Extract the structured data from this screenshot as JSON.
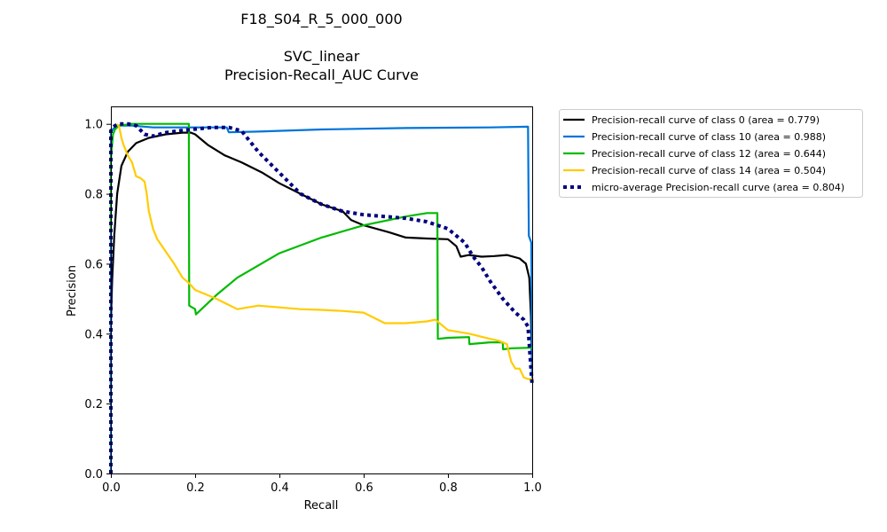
{
  "chart_data": {
    "type": "line",
    "title": [
      "F18_S04_R_5_000_000",
      "",
      "SVC_linear",
      "Precision-Recall_AUC Curve"
    ],
    "xlabel": "Recall",
    "ylabel": "Precision",
    "xlim": [
      0,
      1
    ],
    "ylim": [
      0,
      1.05
    ],
    "xticks": [
      "0.0",
      "0.2",
      "0.4",
      "0.6",
      "0.8",
      "1.0"
    ],
    "yticks": [
      "0.0",
      "0.2",
      "0.4",
      "0.6",
      "0.8",
      "1.0"
    ],
    "grid": false,
    "legend_position": "outside-top-right",
    "series": [
      {
        "name": "Precision-recall curve of class 0 (area = 0.779)",
        "color": "#000000",
        "style": "solid",
        "x": [
          0.0,
          0.0,
          0.003,
          0.008,
          0.015,
          0.025,
          0.04,
          0.06,
          0.09,
          0.13,
          0.17,
          0.19,
          0.2,
          0.21,
          0.23,
          0.27,
          0.31,
          0.36,
          0.4,
          0.45,
          0.5,
          0.55,
          0.57,
          0.6,
          0.66,
          0.7,
          0.75,
          0.8,
          0.82,
          0.83,
          0.85,
          0.88,
          0.91,
          0.94,
          0.97,
          0.985,
          0.993,
          0.997,
          1.0
        ],
        "y": [
          0.25,
          0.43,
          0.55,
          0.68,
          0.8,
          0.88,
          0.92,
          0.945,
          0.96,
          0.97,
          0.975,
          0.975,
          0.97,
          0.96,
          0.94,
          0.91,
          0.89,
          0.86,
          0.83,
          0.8,
          0.77,
          0.75,
          0.725,
          0.71,
          0.69,
          0.675,
          0.672,
          0.67,
          0.65,
          0.62,
          0.625,
          0.62,
          0.622,
          0.625,
          0.615,
          0.6,
          0.56,
          0.45,
          0.28
        ]
      },
      {
        "name": "Precision-recall curve of class 10 (area = 0.988)",
        "color": "#0074d9",
        "style": "solid",
        "x": [
          0.0,
          0.0,
          0.005,
          0.01,
          0.02,
          0.05,
          0.1,
          0.2,
          0.275,
          0.28,
          0.35,
          0.5,
          0.7,
          0.9,
          0.99,
          0.992,
          0.998,
          1.0
        ],
        "y": [
          0.0,
          0.98,
          0.985,
          0.99,
          0.995,
          0.995,
          0.99,
          0.99,
          0.99,
          0.976,
          0.978,
          0.984,
          0.988,
          0.99,
          0.992,
          0.68,
          0.66,
          0.27
        ]
      },
      {
        "name": "Precision-recall curve of class 12 (area = 0.644)",
        "color": "#00bb00",
        "style": "solid",
        "x": [
          0.0,
          0.0,
          0.005,
          0.01,
          0.02,
          0.05,
          0.1,
          0.15,
          0.185,
          0.186,
          0.2,
          0.202,
          0.25,
          0.3,
          0.4,
          0.5,
          0.6,
          0.7,
          0.75,
          0.775,
          0.776,
          0.8,
          0.85,
          0.851,
          0.9,
          0.93,
          0.931,
          0.95,
          1.0
        ],
        "y": [
          0.7,
          0.9,
          0.97,
          0.985,
          0.995,
          1.0,
          1.0,
          1.0,
          1.0,
          0.48,
          0.47,
          0.455,
          0.51,
          0.56,
          0.63,
          0.675,
          0.71,
          0.735,
          0.745,
          0.745,
          0.385,
          0.388,
          0.39,
          0.37,
          0.375,
          0.375,
          0.355,
          0.358,
          0.36
        ]
      },
      {
        "name": "Precision-recall curve of class 14 (area = 0.504)",
        "color": "#ffcc00",
        "style": "solid",
        "x": [
          0.015,
          0.02,
          0.025,
          0.03,
          0.04,
          0.05,
          0.06,
          0.07,
          0.08,
          0.085,
          0.09,
          0.1,
          0.11,
          0.13,
          0.15,
          0.17,
          0.185,
          0.2,
          0.25,
          0.3,
          0.35,
          0.4,
          0.45,
          0.5,
          0.55,
          0.6,
          0.65,
          0.7,
          0.75,
          0.77,
          0.8,
          0.85,
          0.9,
          0.92,
          0.94,
          0.95,
          0.96,
          0.97,
          0.98,
          0.99,
          1.0
        ],
        "y": [
          1.0,
          0.99,
          0.96,
          0.94,
          0.91,
          0.89,
          0.85,
          0.845,
          0.835,
          0.8,
          0.75,
          0.7,
          0.67,
          0.635,
          0.6,
          0.56,
          0.545,
          0.525,
          0.5,
          0.47,
          0.48,
          0.475,
          0.47,
          0.468,
          0.465,
          0.46,
          0.43,
          0.43,
          0.435,
          0.44,
          0.41,
          0.4,
          0.385,
          0.38,
          0.37,
          0.32,
          0.3,
          0.3,
          0.275,
          0.27,
          0.27
        ]
      },
      {
        "name": "micro-average Precision-recall curve (area = 0.804)",
        "color": "#00007f",
        "style": "dotted",
        "x": [
          0.0,
          0.0,
          0.005,
          0.01,
          0.02,
          0.04,
          0.06,
          0.08,
          0.1,
          0.13,
          0.16,
          0.2,
          0.24,
          0.28,
          0.31,
          0.35,
          0.4,
          0.45,
          0.5,
          0.55,
          0.6,
          0.65,
          0.7,
          0.75,
          0.8,
          0.84,
          0.86,
          0.88,
          0.9,
          0.93,
          0.96,
          0.98,
          0.99,
          1.0
        ],
        "y": [
          0.0,
          0.98,
          0.99,
          0.995,
          1.0,
          1.0,
          0.995,
          0.97,
          0.965,
          0.975,
          0.98,
          0.985,
          0.99,
          0.99,
          0.98,
          0.92,
          0.86,
          0.8,
          0.77,
          0.75,
          0.74,
          0.735,
          0.73,
          0.72,
          0.7,
          0.66,
          0.62,
          0.59,
          0.55,
          0.5,
          0.46,
          0.44,
          0.42,
          0.25
        ]
      }
    ]
  }
}
